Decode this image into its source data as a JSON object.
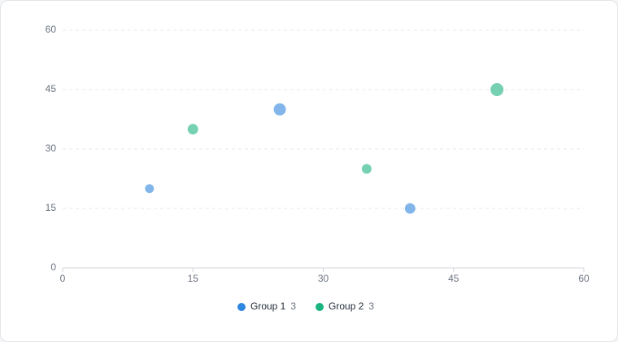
{
  "chart_data": {
    "type": "scatter",
    "series": [
      {
        "name": "Group 1",
        "color": "#2f86de",
        "count": 3,
        "x": [
          10,
          25,
          40
        ],
        "values": [
          20,
          40,
          15
        ],
        "sizes": [
          30,
          56,
          42
        ]
      },
      {
        "name": "Group 2",
        "color": "#1bb37f",
        "count": 3,
        "x": [
          15,
          35,
          50
        ],
        "values": [
          35,
          25,
          45
        ],
        "sizes": [
          42,
          36,
          64
        ]
      }
    ],
    "xlim": [
      0,
      60
    ],
    "xticks": [
      0,
      15,
      30,
      45,
      60
    ],
    "ylim": [
      0,
      60
    ],
    "yticks": [
      0,
      15,
      30,
      45,
      60
    ],
    "grid": true,
    "legend": "bottom"
  }
}
